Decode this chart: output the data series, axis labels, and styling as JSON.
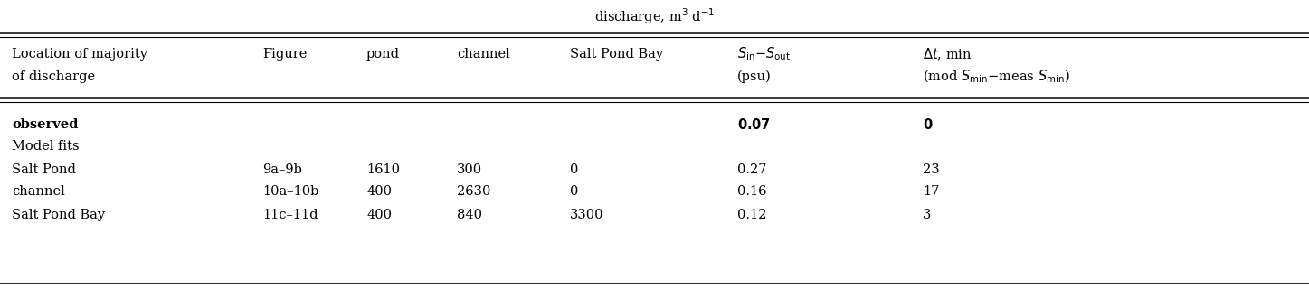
{
  "figsize": [
    14.47,
    3.2
  ],
  "dpi": 100,
  "background_color": "#ffffff",
  "super_header": "discharge, m$^3$ d$^{-1}$",
  "col_x_inches": [
    0.13,
    2.9,
    4.05,
    5.05,
    6.3,
    8.15,
    10.2
  ],
  "font_size": 10.5,
  "rows": [
    {
      "col0": "\\textbf{observed}",
      "col1": "",
      "col2": "",
      "col3": "",
      "col4": "",
      "col5": "0.07",
      "col6": "0",
      "bold": true
    },
    {
      "col0": "Model fits",
      "col1": "",
      "col2": "",
      "col3": "",
      "col4": "",
      "col5": "",
      "col6": "",
      "bold": false
    },
    {
      "col0": "Salt Pond",
      "col1": "9a–9b",
      "col2": "1610",
      "col3": "300",
      "col4": "0",
      "col5": "0.27",
      "col6": "23",
      "bold": false
    },
    {
      "col0": "channel",
      "col1": "10a–10b",
      "col2": "400",
      "col3": "2630",
      "col4": "0",
      "col5": "0.16",
      "col6": "17",
      "bold": false
    },
    {
      "col0": "Salt Pond Bay",
      "col1": "11c–11d",
      "col2": "400",
      "col3": "840",
      "col4": "3300",
      "col5": "0.12",
      "col6": "3",
      "bold": false
    }
  ]
}
